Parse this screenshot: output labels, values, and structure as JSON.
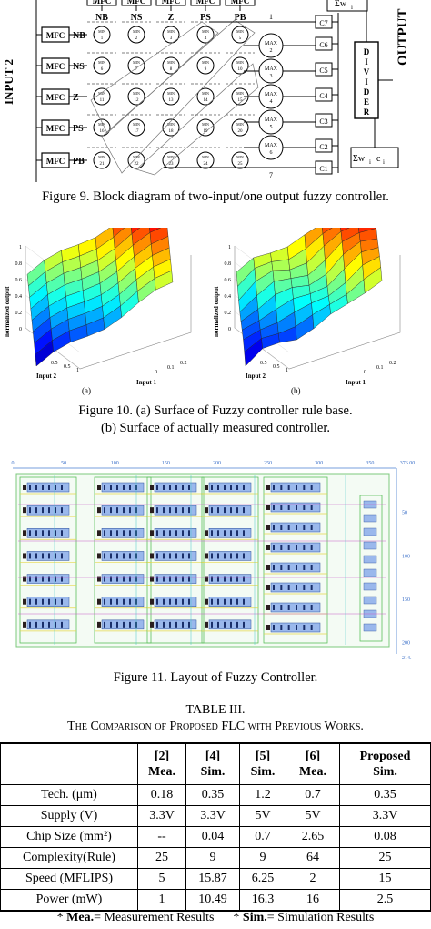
{
  "fig9": {
    "input_label": "INPUT 2",
    "output_label": "OUTPUT",
    "mfc": "MFC",
    "col_labels": [
      "NB",
      "NS",
      "Z",
      "PS",
      "PB"
    ],
    "row_labels": [
      "NB",
      "NS",
      "Z",
      "PS",
      "PB"
    ],
    "cell_top": "MIN",
    "cell_nums": [
      [
        "1",
        "2",
        "3",
        "4",
        "5"
      ],
      [
        "6",
        "7",
        "8",
        "9",
        "10"
      ],
      [
        "11",
        "12",
        "13",
        "14",
        "15"
      ],
      [
        "16",
        "17",
        "18",
        "19",
        "20"
      ],
      [
        "21",
        "22",
        "23",
        "24",
        "25"
      ]
    ],
    "max_units": [
      "MAX\n2",
      "MAX\n3",
      "MAX\n4",
      "MAX\n5",
      "MAX\n6"
    ],
    "c_labels": [
      "C7",
      "C6",
      "C5",
      "C4",
      "C3",
      "C2",
      "C1"
    ],
    "divider": [
      "D",
      "I",
      "V",
      "I",
      "D",
      "E",
      "R"
    ],
    "sum_top": "Σw",
    "sum_top_sub": "i",
    "sum_bot": "Σw",
    "sum_bot_sub": "i",
    "sum_bot_tail": "c",
    "sum_bot_tail_sub": "i",
    "line1": "1",
    "line7": "7",
    "caption": "Figure 9.   Block diagram of two-input/one output fuzzy controller."
  },
  "fig10": {
    "zlabel": "normalized output",
    "xlabel": "Input 1",
    "ylabel": "Input 2",
    "xticks": [
      "0",
      "0.1",
      "0.2"
    ],
    "yticks": [
      "0.5",
      "0.5",
      "1"
    ],
    "zticks": [
      "1",
      "0.8",
      "0.6",
      "0.4",
      "0.2",
      "0"
    ],
    "tag_a": "(a)",
    "tag_b": "(b)",
    "caption_line1": "Figure 10.    (a) Surface of Fuzzy controller rule base.",
    "caption_line2": "(b) Surface of actually measured controller."
  },
  "fig11": {
    "top_ticks": [
      "0",
      "50",
      "100",
      "150",
      "200",
      "250",
      "300",
      "350"
    ],
    "top_right": "376.00",
    "right_ticks": [
      "50",
      "100",
      "150",
      "200"
    ],
    "bottom_right": "214.",
    "caption": "Figure 11.    Layout of Fuzzy Controller."
  },
  "table3": {
    "title": "TABLE III.",
    "subtitle": "The Comparison of Proposed FLC with Previous Works.",
    "headers": [
      [
        "",
        ""
      ],
      [
        "[2]",
        "Mea."
      ],
      [
        "[4]",
        "Sim."
      ],
      [
        "[5]",
        "Sim."
      ],
      [
        "[6]",
        "Mea."
      ],
      [
        "Proposed",
        "Sim."
      ]
    ],
    "rows": [
      [
        "Tech. (μm)",
        "0.18",
        "0.35",
        "1.2",
        "0.7",
        "0.35"
      ],
      [
        "Supply (V)",
        "3.3V",
        "3.3V",
        "5V",
        "5V",
        "3.3V"
      ],
      [
        "Chip Size (mm²)",
        "--",
        "0.04",
        "0.7",
        "2.65",
        "0.08"
      ],
      [
        "Complexity(Rule)",
        "25",
        "9",
        "9",
        "64",
        "25"
      ],
      [
        "Speed (MFLIPS)",
        "5",
        "15.87",
        "6.25",
        "2",
        "15"
      ],
      [
        "Power (mW)",
        "1",
        "10.49",
        "16.3",
        "16",
        "2.5"
      ]
    ],
    "footnote_a_key": "Mea.",
    "footnote_a_val": "= Measurement Results",
    "footnote_b_key": "Sim.",
    "footnote_b_val": "= Simulation Results"
  }
}
